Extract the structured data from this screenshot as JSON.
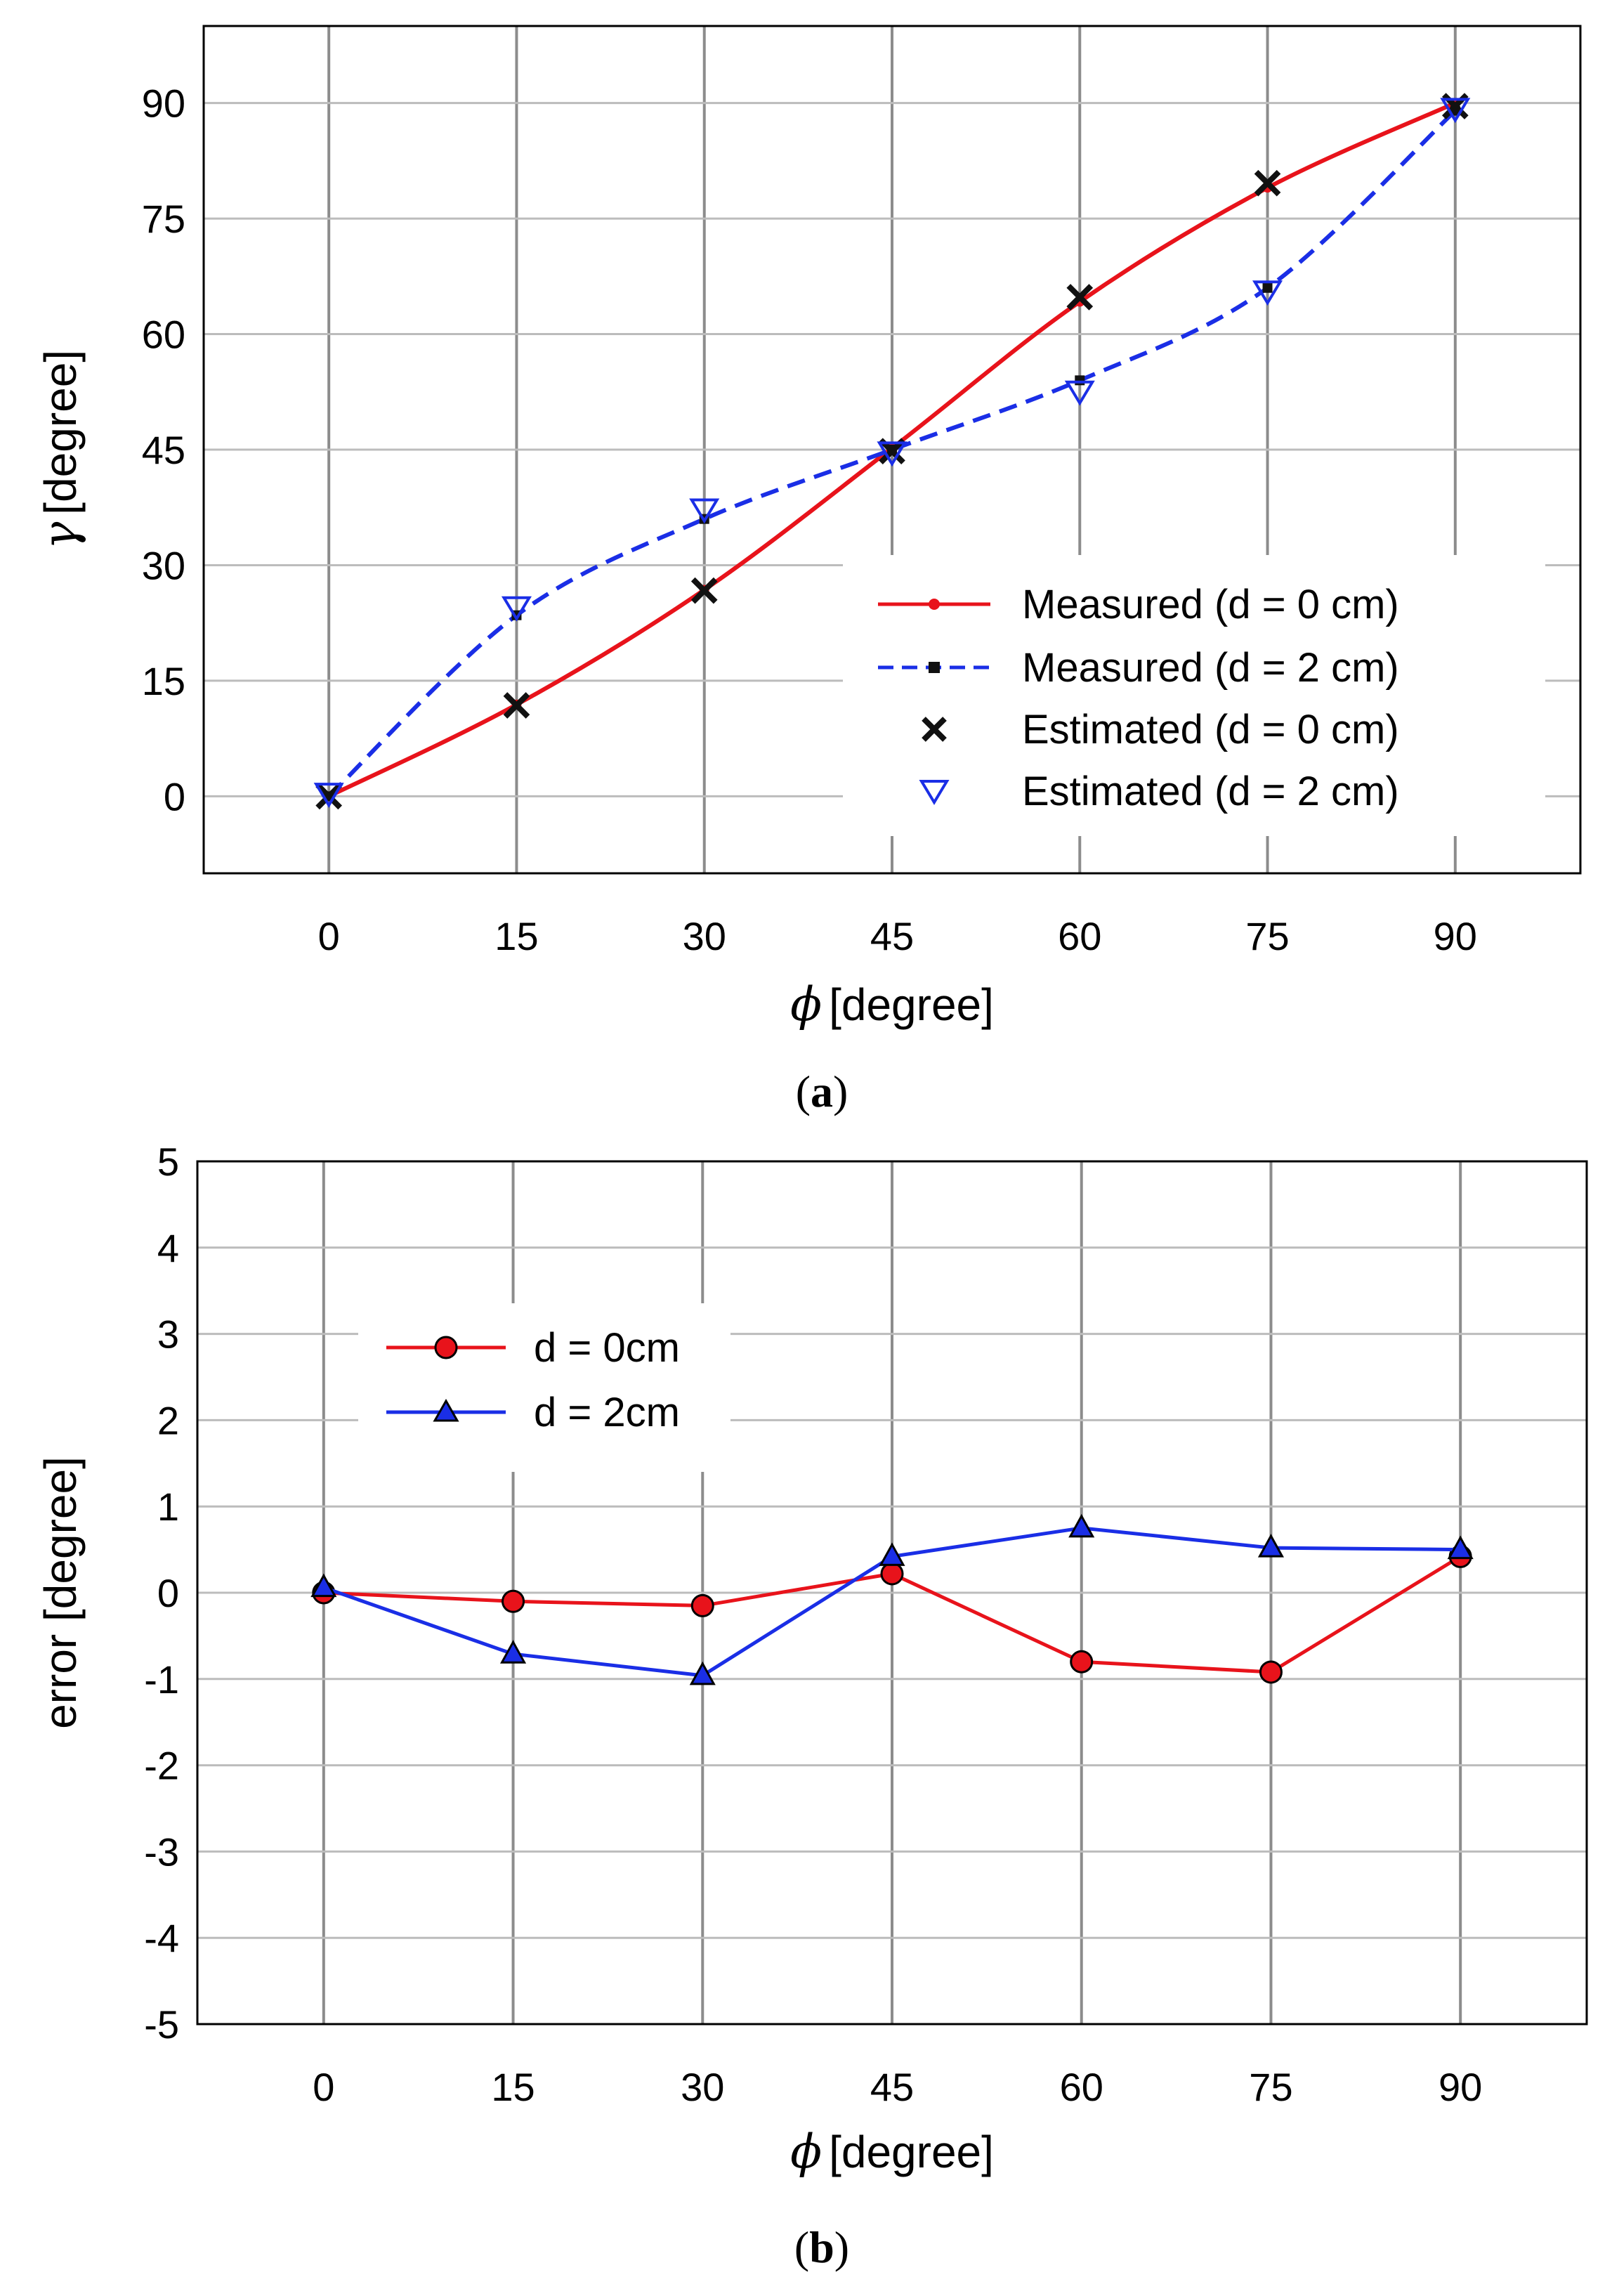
{
  "chart_data": [
    {
      "panel": "a",
      "type": "line",
      "caption_open": "(",
      "caption_letter": "a",
      "caption_close": ")",
      "xlabel_symbol": "ϕ",
      "xlabel": "[degree]",
      "ylabel_symbol": "γ",
      "ylabel": "[degree]",
      "xlim": [
        -10,
        100
      ],
      "ylim": [
        -10,
        100
      ],
      "xticks": [
        0,
        15,
        30,
        45,
        60,
        75,
        90
      ],
      "yticks": [
        0,
        15,
        30,
        45,
        60,
        75,
        90
      ],
      "grid": true,
      "legend_position": "bottom-right",
      "series": [
        {
          "name": "Measured (d = 0 cm)",
          "style": "smooth-solid",
          "marker": "dot",
          "color": "#e8131b",
          "x": [
            0,
            15,
            30,
            45,
            60,
            75,
            90
          ],
          "y": [
            0,
            11.9,
            26.8,
            45.2,
            64.2,
            79.0,
            90.0
          ]
        },
        {
          "name": "Measured (d = 2 cm)",
          "style": "smooth-dashed",
          "marker": "square",
          "color": "#1a2ee6",
          "x": [
            0,
            15,
            30,
            45,
            60,
            75,
            90
          ],
          "y": [
            0,
            23.5,
            36.0,
            45.0,
            54.0,
            66.0,
            89.0
          ]
        },
        {
          "name": "Estimated (d = 0 cm)",
          "style": "none",
          "marker": "x",
          "color": "#111111",
          "x": [
            0,
            15,
            30,
            45,
            60,
            75,
            90
          ],
          "y": [
            0,
            11.8,
            26.7,
            44.8,
            64.8,
            79.6,
            89.6
          ]
        },
        {
          "name": "Estimated (d = 2 cm)",
          "style": "none",
          "marker": "triangle-down-open",
          "color": "#1a2ee6",
          "x": [
            0,
            15,
            30,
            45,
            60,
            75,
            90
          ],
          "y": [
            0.3,
            24.5,
            37.2,
            44.6,
            52.5,
            65.5,
            89.2
          ]
        }
      ]
    },
    {
      "panel": "b",
      "type": "line",
      "caption_open": "(",
      "caption_letter": "b",
      "caption_close": ")",
      "xlabel_symbol": "ϕ",
      "xlabel": "[degree]",
      "ylabel": "error [degree]",
      "xlim": [
        -10,
        100
      ],
      "ylim": [
        -5,
        5
      ],
      "xticks": [
        0,
        15,
        30,
        45,
        60,
        75,
        90
      ],
      "yticks": [
        5,
        4,
        3,
        2,
        1,
        0,
        -1,
        -2,
        -3,
        -4,
        -5
      ],
      "grid": true,
      "legend_position": "top-left",
      "series": [
        {
          "name": "d = 0cm",
          "style": "solid",
          "marker": "circle",
          "color": "#e8131b",
          "x": [
            0,
            15,
            30,
            45,
            60,
            75,
            90
          ],
          "y": [
            0.0,
            -0.1,
            -0.15,
            0.22,
            -0.8,
            -0.92,
            0.42
          ]
        },
        {
          "name": "d = 2cm",
          "style": "solid",
          "marker": "triangle-up",
          "color": "#1a2ee6",
          "x": [
            0,
            15,
            30,
            45,
            60,
            75,
            90
          ],
          "y": [
            0.06,
            -0.71,
            -0.96,
            0.42,
            0.75,
            0.52,
            0.5
          ]
        }
      ]
    }
  ]
}
